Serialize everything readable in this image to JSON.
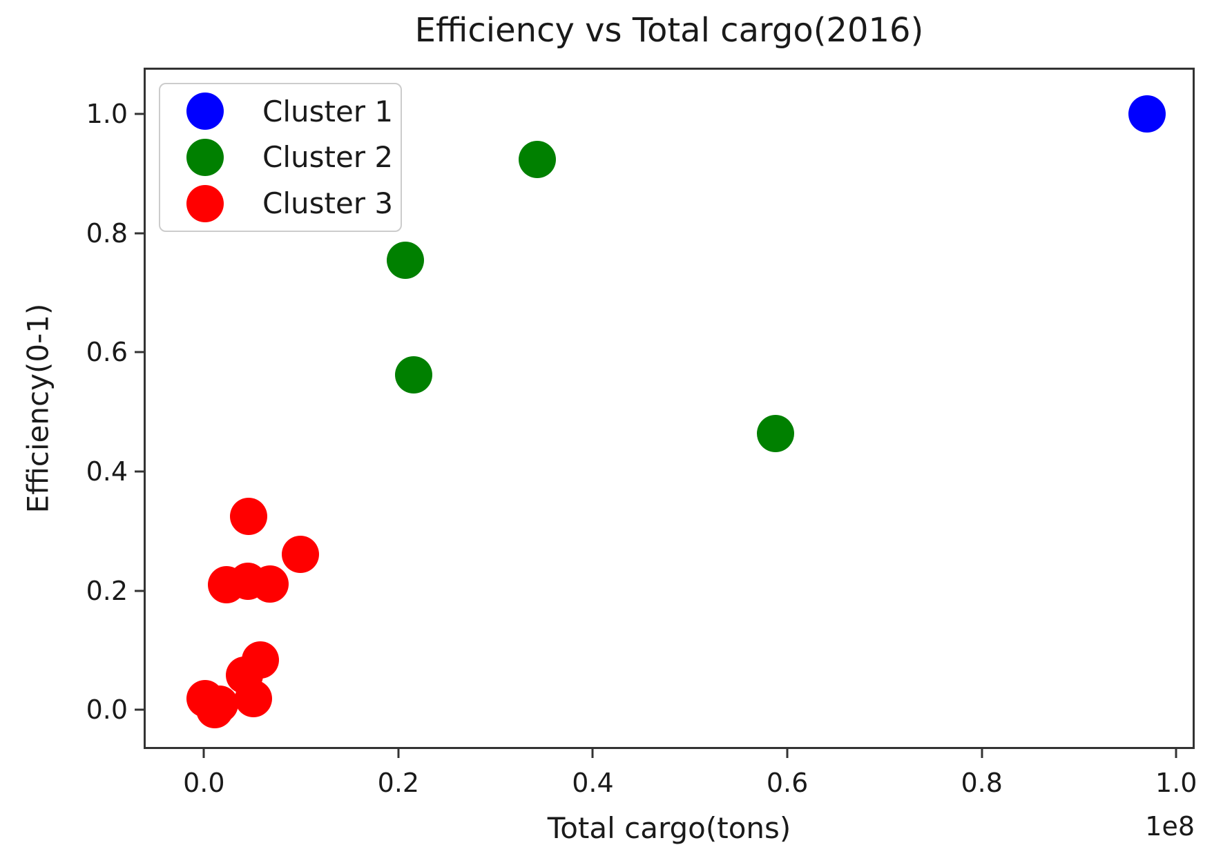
{
  "chart_data": {
    "type": "scatter",
    "title": "Efficiency vs Total cargo(2016)",
    "xlabel": "Total cargo(tons)",
    "ylabel": "Efficiency(0-1)",
    "x_offset_label": "1e8",
    "x_units_note": "x values are in units of 1e8 tons",
    "xlim": [
      -0.062,
      1.019
    ],
    "ylim": [
      -0.066,
      1.078
    ],
    "xticks": [
      "0.0",
      "0.2",
      "0.4",
      "0.6",
      "0.8",
      "1.0"
    ],
    "yticks": [
      "0.0",
      "0.2",
      "0.4",
      "0.6",
      "0.8",
      "1.0"
    ],
    "grid": false,
    "legend_position": "upper left",
    "series": [
      {
        "name": "Cluster 1",
        "color": "#0000ff",
        "points": [
          [
            0.97,
            1.0
          ]
        ]
      },
      {
        "name": "Cluster 2",
        "color": "#008000",
        "points": [
          [
            0.343,
            0.924
          ],
          [
            0.207,
            0.755
          ],
          [
            0.216,
            0.562
          ],
          [
            0.588,
            0.464
          ]
        ]
      },
      {
        "name": "Cluster 3",
        "color": "#ff0000",
        "points": [
          [
            0.046,
            0.325
          ],
          [
            0.099,
            0.261
          ],
          [
            0.023,
            0.21
          ],
          [
            0.045,
            0.216
          ],
          [
            0.068,
            0.211
          ],
          [
            0.058,
            0.083
          ],
          [
            0.042,
            0.058
          ],
          [
            0.051,
            0.019
          ],
          [
            0.001,
            0.019
          ],
          [
            0.011,
            0.0
          ],
          [
            0.016,
            0.009
          ]
        ]
      }
    ]
  }
}
